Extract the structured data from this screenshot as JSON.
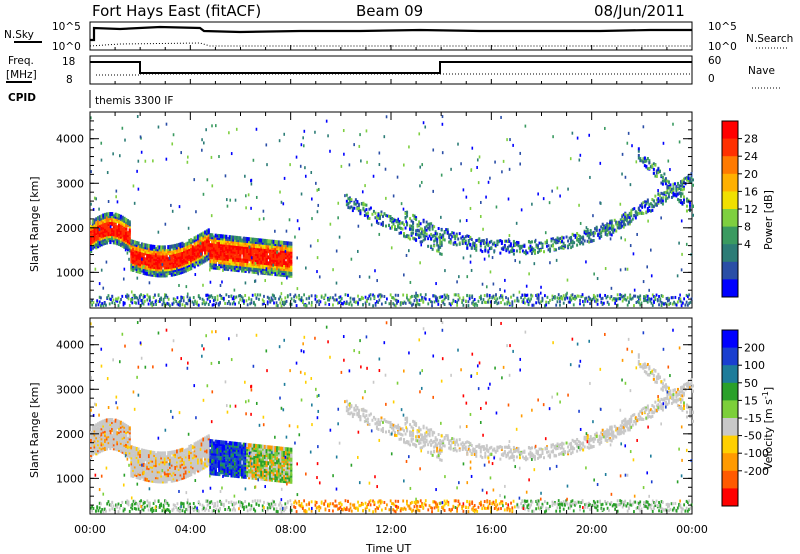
{
  "header": {
    "title": "Fort Hays East (fitACF)",
    "beam": "Beam 09",
    "date": "08/Jun/2011"
  },
  "panels": {
    "nsky": {
      "label": "N.Sky",
      "top_tick": "10^5",
      "bottom_tick": "10^0",
      "right_label": "N.Search",
      "right_top": "10^5",
      "right_bottom": "10^0"
    },
    "freq": {
      "label_line1": "Freq.",
      "label_line2": "[MHz]",
      "top_tick": "18",
      "bottom_tick": "8",
      "right_label": "Nave",
      "right_top": "60",
      "right_bottom": "0"
    },
    "cpid": {
      "label": "CPID",
      "text": "themis 3300 IF"
    }
  },
  "chart_data": [
    {
      "type": "heatmap",
      "name": "Power",
      "ylabel": "Slant Range [km]",
      "xlabel": "Time UT",
      "x_ticks": [
        "00:00",
        "04:00",
        "08:00",
        "12:00",
        "16:00",
        "20:00",
        "00:00"
      ],
      "y_ticks": [
        1000,
        2000,
        3000,
        4000
      ],
      "ylim": [
        200,
        4600
      ],
      "colorbar": {
        "label": "Power [dB]",
        "ticks": [
          28,
          24,
          20,
          16,
          12,
          8,
          4
        ],
        "colors": [
          "#ff0000",
          "#ff3000",
          "#ff7a00",
          "#ffb000",
          "#f0e000",
          "#7ecf40",
          "#3a9a60",
          "#2c7c76",
          "#2a4ea6",
          "#0000ff"
        ]
      }
    },
    {
      "type": "heatmap",
      "name": "Velocity",
      "ylabel": "Slant Range [km]",
      "xlabel": "Time UT",
      "x_ticks": [
        "00:00",
        "04:00",
        "08:00",
        "12:00",
        "16:00",
        "20:00",
        "00:00"
      ],
      "y_ticks": [
        1000,
        2000,
        3000,
        4000
      ],
      "ylim": [
        200,
        4600
      ],
      "colorbar": {
        "label": "Velocity [m s",
        "label_sup": "-1",
        "label_end": "]",
        "ticks": [
          200,
          100,
          50,
          15,
          -15,
          -50,
          -100,
          -200
        ],
        "colors": [
          "#0000ff",
          "#1a3fd0",
          "#1e7c9a",
          "#2aa02a",
          "#7ccf3a",
          "#c8c8c8",
          "#ffd000",
          "#ff9a00",
          "#ff5a00",
          "#ff0000"
        ]
      }
    }
  ],
  "footer": {
    "xlabel": "Time UT"
  }
}
